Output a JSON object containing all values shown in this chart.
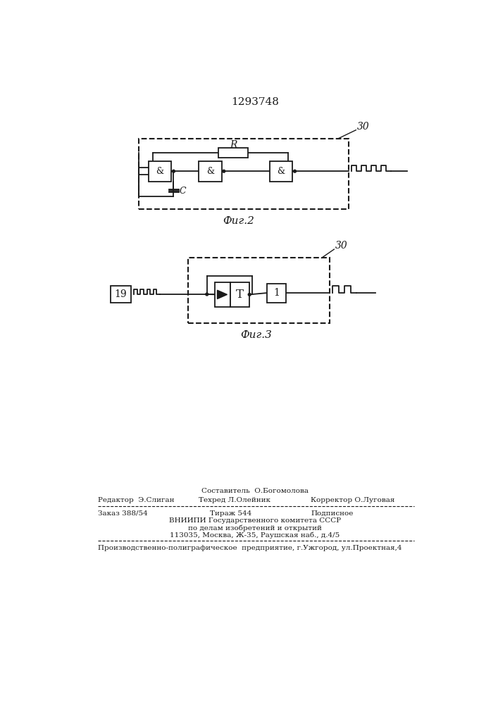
{
  "patent_number": "1293748",
  "fig2_caption": "Фиг.2",
  "fig3_caption": "Фиг.3",
  "label_30": "30",
  "label_R": "R",
  "label_C": "C",
  "label_19": "19",
  "label_1": "1",
  "label_T": "T",
  "label_amp": "&",
  "footer_line1_left": "Редактор  Э.Слиган",
  "footer_line1_center": "Техред Л.Олейник",
  "footer_line1_center_top": "Составитель  О.Богомолова",
  "footer_line1_right": "Корректор О.Луговая",
  "footer_line2_left": "Заказ 388/54",
  "footer_line2_center": "Тираж 544",
  "footer_line2_right": "Подписное",
  "footer_line3": "ВНИИПИ Государственного комитета СССР",
  "footer_line4": "по делам изобретений и открытий",
  "footer_line5": "113035, Москва, Ж-35, Раушская наб., д.4/5",
  "footer_line6": "Производственно-полиграфическое  предприятие, г.Ужгород, ул.Проектная,4",
  "bg_color": "#ffffff",
  "line_color": "#1a1a1a"
}
